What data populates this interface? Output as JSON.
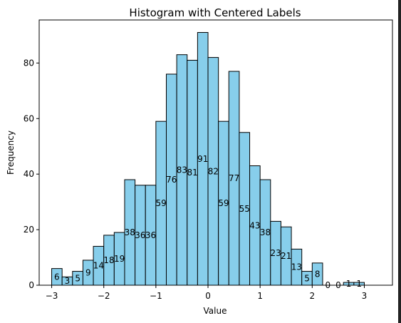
{
  "chart_data": {
    "type": "bar",
    "title": "Histogram with Centered Labels",
    "xlabel": "Value",
    "ylabel": "Frequency",
    "xlim": [
      -3.24,
      3.54
    ],
    "ylim": [
      0,
      95.5
    ],
    "x_ticks": [
      -3,
      -2,
      -1,
      0,
      1,
      2,
      3
    ],
    "y_ticks": [
      0,
      20,
      40,
      60,
      80
    ],
    "bin_start": -3.0,
    "bin_width": 0.2,
    "values": [
      6,
      3,
      5,
      9,
      14,
      18,
      19,
      38,
      36,
      36,
      59,
      76,
      83,
      81,
      91,
      82,
      59,
      77,
      55,
      43,
      38,
      23,
      21,
      13,
      5,
      8,
      0,
      0,
      1,
      1
    ],
    "label_note": "each bar label is drawn at half the bar height",
    "bar_color": "#87ceeb",
    "edge_color": "#000000",
    "grid": false
  }
}
